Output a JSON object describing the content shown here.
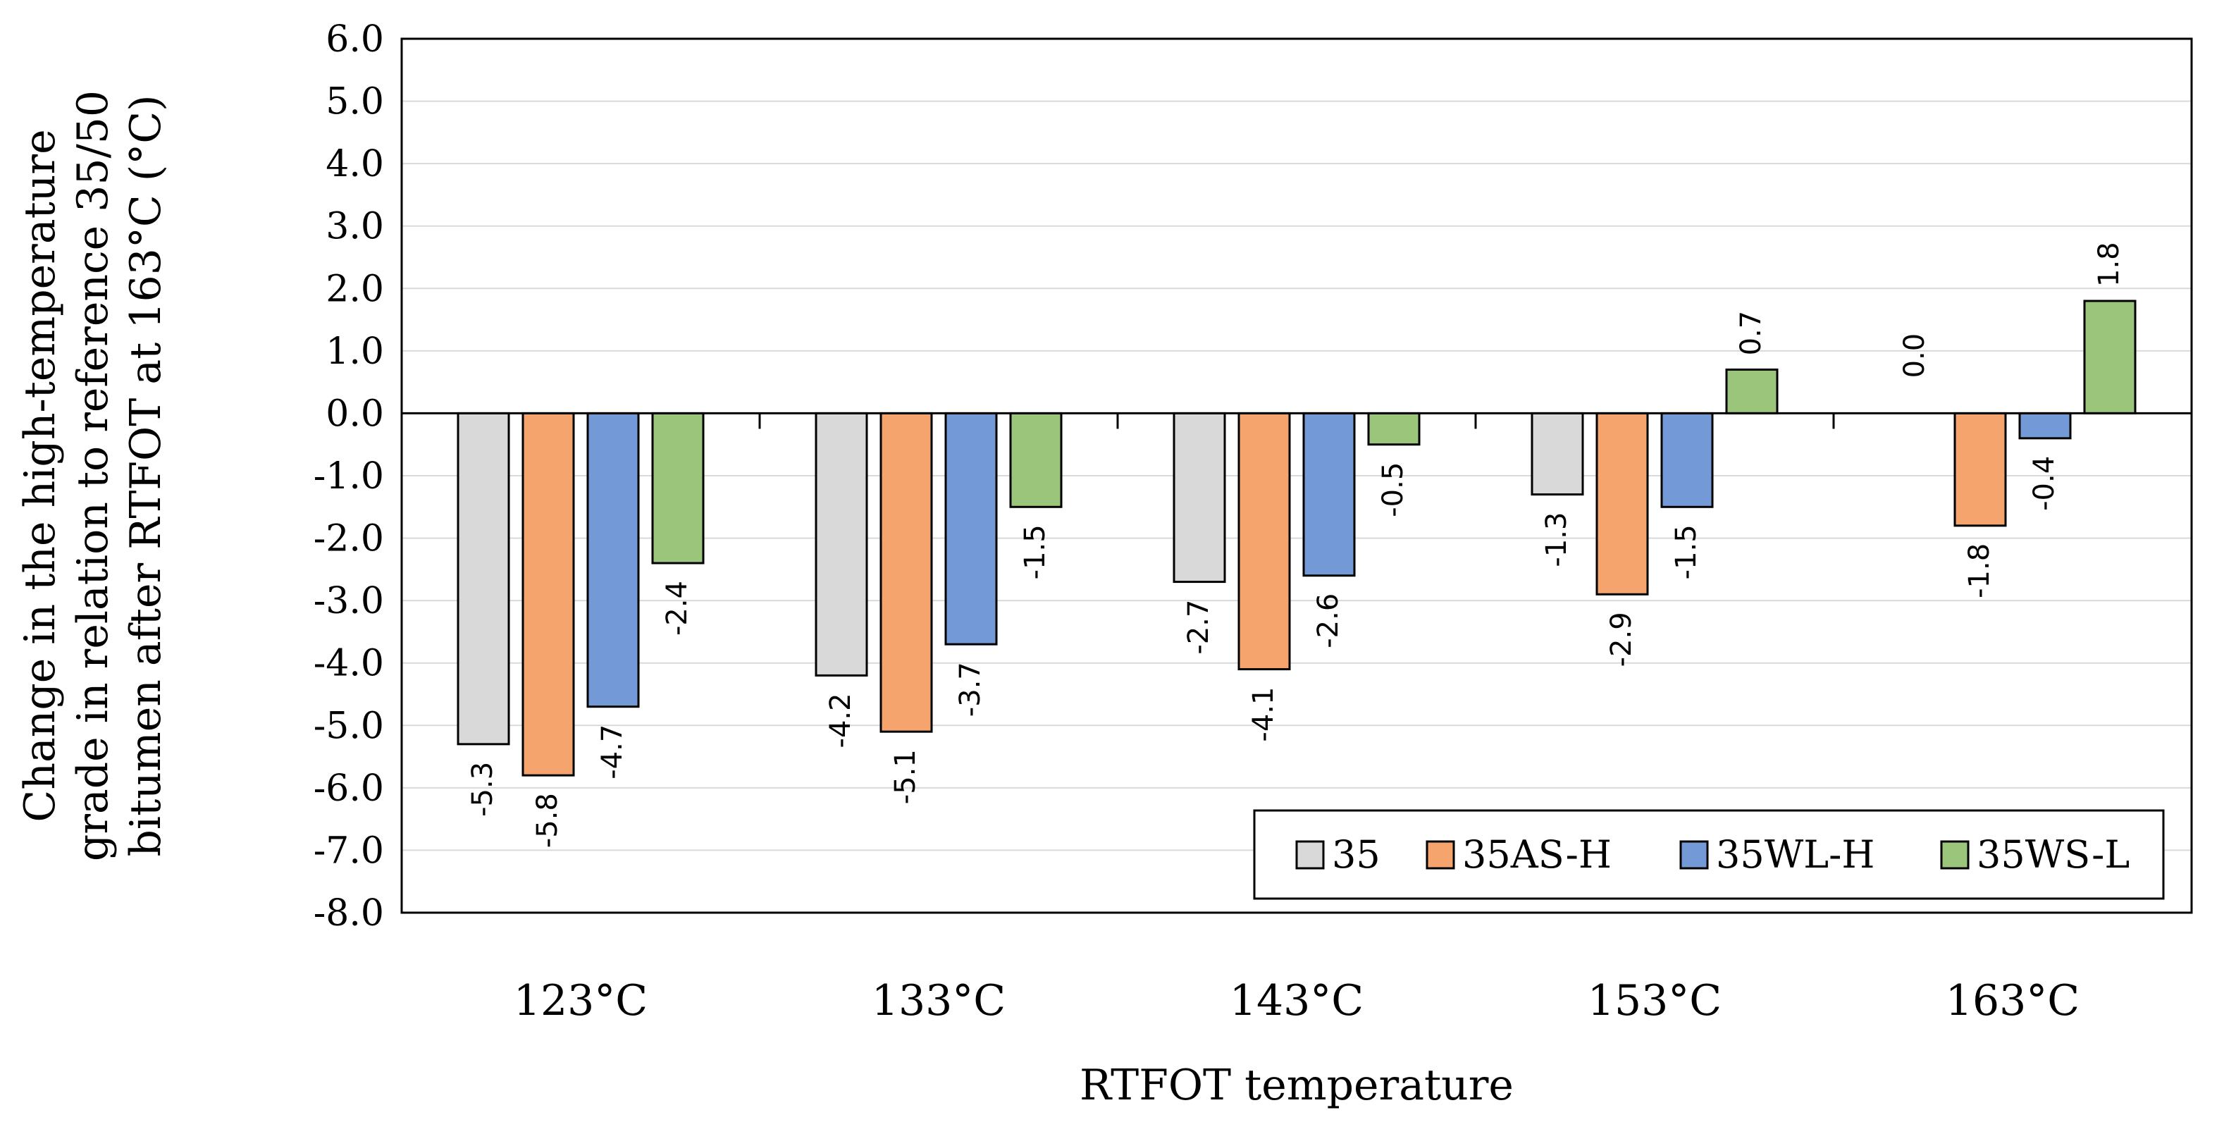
{
  "chart_data": {
    "type": "bar",
    "title": "",
    "xlabel": "RTFOT temperature",
    "ylabel_lines": [
      "Change in the high-temperature",
      "grade in relation to reference 35/50",
      "bitumen after RTFOT at 163°C  (°C)"
    ],
    "categories": [
      "123°C",
      "133°C",
      "143°C",
      "153°C",
      "163°C"
    ],
    "ylim": [
      -8.0,
      6.0
    ],
    "ytick_step": 1.0,
    "grid": true,
    "legend_position": "bottom-right",
    "series": [
      {
        "name": "35",
        "color": "#d9d9d9",
        "values": [
          -5.3,
          -4.2,
          -2.7,
          -1.3,
          0.0
        ],
        "labels": [
          "-5.3",
          "-4.2",
          "-2.7",
          "-1.3",
          "0.0"
        ]
      },
      {
        "name": "35AS-H",
        "color": "#f4a46c",
        "values": [
          -5.8,
          -5.1,
          -4.1,
          -2.9,
          -1.8
        ],
        "labels": [
          "-5.8",
          "-5.1",
          "-4.1",
          "-2.9",
          "-1.8"
        ]
      },
      {
        "name": "35WL-H",
        "color": "#7399d6",
        "values": [
          -4.7,
          -3.7,
          -2.6,
          -1.5,
          -0.4
        ],
        "labels": [
          "-4.7",
          "-3.7",
          "-2.6",
          "-1.5",
          "-0.4"
        ]
      },
      {
        "name": "35WS-L",
        "color": "#9bc57b",
        "values": [
          -2.4,
          -1.5,
          -0.5,
          0.7,
          1.8
        ],
        "labels": [
          "-2.4",
          "-1.5",
          "-0.5",
          "0.7",
          "1.8"
        ]
      }
    ]
  }
}
